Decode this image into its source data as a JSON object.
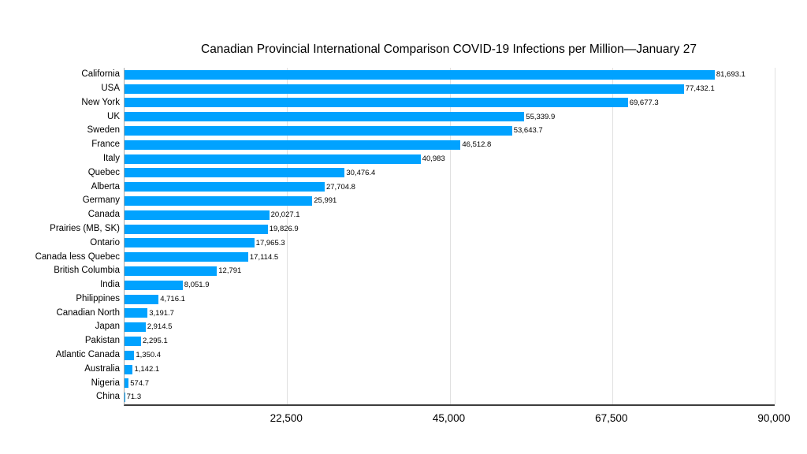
{
  "chart_data": {
    "type": "bar",
    "orientation": "horizontal",
    "title": "Canadian Provincial International Comparison COVID-19 Infections per Million—January 27",
    "categories": [
      "California",
      "USA",
      "New York",
      "UK",
      "Sweden",
      "France",
      "Italy",
      "Quebec",
      "Alberta",
      "Germany",
      "Canada",
      "Prairies (MB, SK)",
      "Ontario",
      "Canada less Quebec",
      "British Columbia",
      "India",
      "Philippines",
      "Canadian North",
      "Japan",
      "Pakistan",
      "Atlantic Canada",
      "Australia",
      "Nigeria",
      "China"
    ],
    "values": [
      81693.1,
      77432.1,
      69677.3,
      55339.9,
      53643.7,
      46512.8,
      40983,
      30476.4,
      27704.8,
      25991,
      20027.1,
      19826.9,
      17965.3,
      17114.5,
      12791,
      8051.9,
      4716.1,
      3191.7,
      2914.5,
      2295.1,
      1350.4,
      1142.1,
      574.7,
      71.3
    ],
    "value_labels": [
      "81,693.1",
      "77,432.1",
      "69,677.3",
      "55,339.9",
      "53,643.7",
      "46,512.8",
      "40,983",
      "30,476.4",
      "27,704.8",
      "25,991",
      "20,027.1",
      "19,826.9",
      "17,965.3",
      "17,114.5",
      "12,791",
      "8,051.9",
      "4,716.1",
      "3,191.7",
      "2,914.5",
      "2,295.1",
      "1,350.4",
      "1,142.1",
      "574.7",
      "71.3"
    ],
    "x_ticks": [
      "22,500",
      "45,000",
      "67,500",
      "90,000"
    ],
    "x_tick_values": [
      22500,
      45000,
      67500,
      90000
    ],
    "xlim": [
      0,
      90000
    ],
    "xlabel": "",
    "ylabel": "",
    "grid": "vertical-on",
    "legend": "none",
    "bar_color": "#00a2ff",
    "gridline_color": "#e0e0e0",
    "y_axis_color": "#a8a8a8",
    "x_axis_color": "#3d3d3d",
    "background_color": "#ffffff"
  }
}
